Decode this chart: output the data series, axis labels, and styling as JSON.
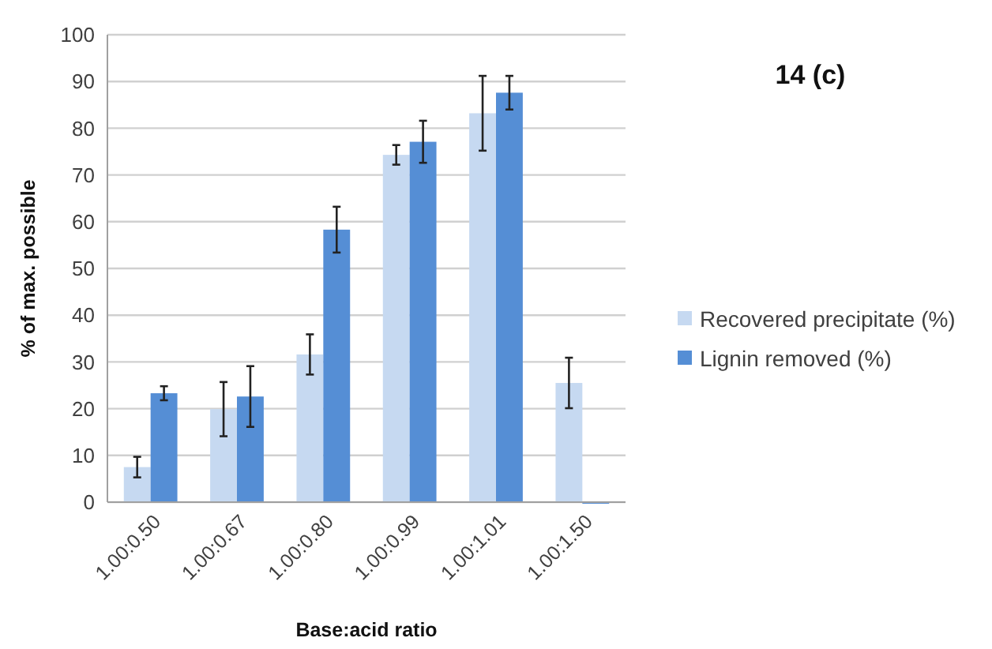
{
  "chart_data": {
    "type": "bar",
    "title": "14 (c)",
    "xlabel": "Base:acid ratio",
    "ylabel": "% of max. possible",
    "categories": [
      "1.00:0.50",
      "1.00:0.67",
      "1.00:0.80",
      "1.00:0.99",
      "1.00:1.01",
      "1.00:1.50"
    ],
    "series": [
      {
        "name": "Recovered precipitate (%)",
        "color": "#c6d9f1",
        "values": [
          7.5,
          19.9,
          31.6,
          74.3,
          83.2,
          25.5
        ],
        "errors": [
          2.2,
          5.8,
          4.3,
          2.1,
          8,
          5.4
        ]
      },
      {
        "name": "Lignin removed (%)",
        "color": "#558ed5",
        "values": [
          23.3,
          22.6,
          58.3,
          77.1,
          87.6,
          0
        ],
        "errors": [
          1.5,
          6.5,
          4.9,
          4.5,
          3.6,
          null
        ]
      }
    ],
    "ylim": [
      0,
      100
    ],
    "yticks": [
      0,
      10,
      20,
      30,
      40,
      50,
      60,
      70,
      80,
      90,
      100
    ],
    "grid": "y",
    "legend": "right"
  }
}
